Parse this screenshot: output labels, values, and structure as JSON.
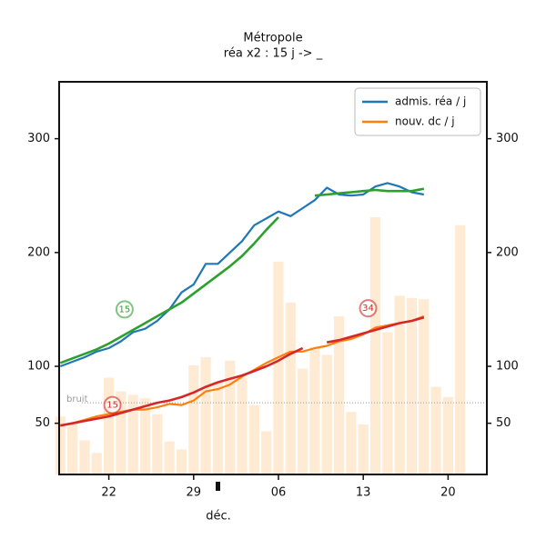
{
  "chart_data": {
    "type": "line",
    "title": "Métropole",
    "subtitle": "réa x2 : 15 j -> _",
    "xlabel": "déc.",
    "x": [
      -4,
      -3,
      -2,
      -1,
      0,
      1,
      2,
      3,
      4,
      5,
      6,
      7,
      8,
      9,
      10,
      11,
      12,
      13,
      14,
      15,
      16,
      17,
      18,
      19,
      20,
      21,
      22,
      23,
      24,
      25,
      26,
      27,
      28,
      29
    ],
    "xlim": [
      -4.1,
      31.2
    ],
    "xticks": [
      {
        "value": 0,
        "label": "22"
      },
      {
        "value": 7,
        "label": "29"
      },
      {
        "value": 14,
        "label": "06"
      },
      {
        "value": 21,
        "label": "13"
      },
      {
        "value": 28,
        "label": "20"
      }
    ],
    "ylim": [
      5,
      350
    ],
    "yticks": [
      50,
      100,
      200,
      300
    ],
    "bars": {
      "color": "#ffe3c2",
      "values": [
        56,
        50,
        35,
        24,
        90,
        78,
        75,
        72,
        58,
        34,
        27,
        101,
        108,
        86,
        105,
        90,
        66,
        43,
        192,
        156,
        98,
        117,
        110,
        144,
        60,
        49,
        231,
        130,
        162,
        160,
        159,
        82,
        73,
        224
      ]
    },
    "series": [
      {
        "name": "admis. réa / j",
        "color": "#1f77b4",
        "values": [
          100,
          104,
          108,
          113,
          116,
          122,
          130,
          133,
          140,
          150,
          165,
          172,
          190,
          190,
          200,
          210,
          224,
          230,
          236,
          232,
          239,
          246,
          257,
          251,
          250,
          251,
          258,
          261,
          258,
          253,
          251,
          null,
          null,
          null
        ]
      },
      {
        "name": "nouv. dc / j",
        "color": "#ff7f0e",
        "values": [
          48,
          50,
          53,
          56,
          58,
          60,
          62,
          62,
          64,
          67,
          66,
          70,
          78,
          80,
          84,
          91,
          97,
          103,
          108,
          113,
          113,
          116,
          118,
          122,
          124,
          128,
          134,
          136,
          138,
          140,
          144,
          null,
          null,
          null
        ]
      }
    ],
    "smoothed": [
      {
        "color": "#2ca02c",
        "values": [
          103,
          107,
          111,
          115,
          120,
          126,
          132,
          138,
          144,
          150,
          156,
          164,
          172,
          180,
          188,
          197,
          208,
          220,
          231,
          null,
          null,
          250,
          251,
          252,
          253,
          254,
          255,
          254,
          254,
          254,
          256,
          null,
          null,
          null
        ]
      },
      {
        "color": "#d62728",
        "values": [
          48,
          50,
          52,
          54,
          56,
          59,
          62,
          65,
          68,
          70,
          73,
          77,
          82,
          86,
          89,
          92,
          96,
          100,
          105,
          111,
          116,
          null,
          121,
          123,
          126,
          129,
          132,
          135,
          138,
          140,
          143,
          null,
          null,
          null
        ]
      }
    ],
    "noise": {
      "text": "bruit",
      "value": 68
    },
    "annotations": [
      {
        "text": "15",
        "x": 1.3,
        "y": 150,
        "color": "#2ca02c"
      },
      {
        "text": "15",
        "x": 0.3,
        "y": 66,
        "color": "#d62728"
      },
      {
        "text": "34",
        "x": 21.4,
        "y": 151,
        "color": "#d62728"
      }
    ],
    "legend": "upper right"
  }
}
